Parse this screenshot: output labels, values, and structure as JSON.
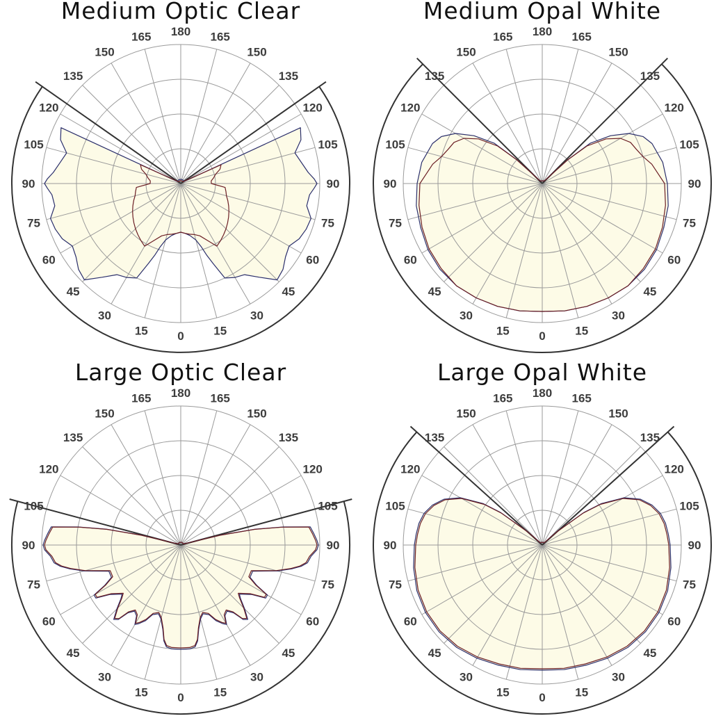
{
  "chart_data": [
    {
      "type": "polar",
      "title": "Medium Optic Clear",
      "angle_ticks": [
        "0",
        "15",
        "30",
        "45",
        "60",
        "75",
        "90",
        "105",
        "120",
        "135",
        "150",
        "165",
        "180"
      ],
      "cutoff_angle": 125,
      "fill_color": "#fdfbe7",
      "series": [
        {
          "color": "#2b2f6b",
          "angles": [
            0,
            5,
            10,
            15,
            18,
            20,
            22,
            25,
            30,
            35,
            40,
            45,
            50,
            55,
            60,
            65,
            70,
            75,
            80,
            85,
            88,
            90,
            92,
            95,
            100,
            105,
            110,
            115,
            120,
            125,
            130,
            135,
            140,
            145,
            150,
            155,
            160,
            165,
            170,
            175,
            180
          ],
          "r": [
            0.35,
            0.36,
            0.38,
            0.42,
            0.48,
            0.55,
            0.62,
            0.75,
            0.78,
            0.8,
            0.88,
            0.98,
            0.96,
            0.92,
            0.9,
            0.94,
            0.96,
            0.97,
            0.92,
            0.93,
            0.96,
            0.98,
            0.96,
            0.92,
            0.88,
            0.85,
            0.92,
            0.95,
            0.03,
            0.03,
            0.03,
            0.03,
            0.03,
            0.03,
            0.03,
            0.03,
            0.03,
            0.03,
            0.03,
            0.03,
            0.03
          ]
        },
        {
          "color": "#6b1e24",
          "angles": [
            0,
            5,
            10,
            15,
            20,
            25,
            30,
            35,
            40,
            45,
            50,
            55,
            60,
            65,
            70,
            75,
            80,
            85,
            90,
            95,
            100,
            105,
            110,
            115,
            120,
            125,
            130,
            135,
            140,
            150,
            160,
            170,
            180
          ],
          "r": [
            0.35,
            0.36,
            0.37,
            0.38,
            0.4,
            0.45,
            0.52,
            0.5,
            0.48,
            0.46,
            0.44,
            0.42,
            0.4,
            0.38,
            0.36,
            0.34,
            0.33,
            0.32,
            0.22,
            0.22,
            0.24,
            0.26,
            0.3,
            0.32,
            0.05,
            0.03,
            0.02,
            0.02,
            0.02,
            0.02,
            0.02,
            0.02,
            0.02
          ]
        }
      ]
    },
    {
      "type": "polar",
      "title": "Medium Opal White",
      "angle_ticks": [
        "0",
        "15",
        "30",
        "45",
        "60",
        "75",
        "90",
        "105",
        "120",
        "135",
        "150",
        "165",
        "180"
      ],
      "cutoff_angle": 135,
      "fill_color": "#fdfbe7",
      "series": [
        {
          "color": "#2b2f6b",
          "angles": [
            0,
            10,
            20,
            30,
            40,
            50,
            60,
            70,
            80,
            90,
            100,
            110,
            115,
            120,
            125,
            130,
            133,
            135,
            140,
            150,
            160,
            170,
            180
          ],
          "r": [
            0.92,
            0.93,
            0.94,
            0.95,
            0.96,
            0.96,
            0.95,
            0.93,
            0.92,
            0.9,
            0.88,
            0.84,
            0.8,
            0.72,
            0.6,
            0.45,
            0.25,
            0.08,
            0.03,
            0.02,
            0.02,
            0.02,
            0.02
          ]
        },
        {
          "color": "#6b1e24",
          "angles": [
            0,
            10,
            20,
            30,
            40,
            50,
            60,
            70,
            80,
            90,
            100,
            105,
            110,
            115,
            120,
            125,
            130,
            133,
            135,
            140,
            150,
            160,
            170,
            180
          ],
          "r": [
            0.92,
            0.93,
            0.94,
            0.95,
            0.96,
            0.95,
            0.94,
            0.92,
            0.9,
            0.88,
            0.8,
            0.75,
            0.72,
            0.7,
            0.65,
            0.56,
            0.42,
            0.25,
            0.08,
            0.03,
            0.02,
            0.02,
            0.02,
            0.02
          ]
        }
      ]
    },
    {
      "type": "polar",
      "title": "Large Optic Clear",
      "angle_ticks": [
        "0",
        "15",
        "30",
        "45",
        "60",
        "75",
        "90",
        "105",
        "120",
        "135",
        "150",
        "165",
        "180"
      ],
      "cutoff_angle": 105,
      "fill_color": "#fdfbe7",
      "series": [
        {
          "color": "#2b2f6b",
          "angles": [
            0,
            5,
            8,
            10,
            12,
            15,
            18,
            22,
            25,
            28,
            30,
            32,
            35,
            38,
            40,
            42,
            45,
            48,
            50,
            55,
            58,
            60,
            62,
            65,
            70,
            75,
            78,
            80,
            82,
            85,
            88,
            90,
            92,
            95,
            98,
            100,
            102,
            104,
            106,
            110,
            115,
            120,
            130,
            140,
            150,
            160,
            170,
            180
          ],
          "r": [
            0.75,
            0.75,
            0.74,
            0.7,
            0.62,
            0.55,
            0.52,
            0.54,
            0.6,
            0.64,
            0.66,
            0.6,
            0.58,
            0.62,
            0.7,
            0.72,
            0.65,
            0.58,
            0.55,
            0.62,
            0.72,
            0.72,
            0.62,
            0.55,
            0.55,
            0.72,
            0.82,
            0.88,
            0.92,
            0.94,
            0.98,
            0.99,
            0.98,
            0.96,
            0.94,
            0.75,
            0.55,
            0.3,
            0.06,
            0.03,
            0.02,
            0.02,
            0.02,
            0.02,
            0.02,
            0.02,
            0.02,
            0.02
          ]
        },
        {
          "color": "#6b1e24",
          "angles": [
            0,
            5,
            8,
            10,
            12,
            15,
            18,
            22,
            25,
            28,
            30,
            32,
            35,
            38,
            40,
            42,
            45,
            48,
            50,
            55,
            58,
            60,
            62,
            65,
            70,
            75,
            78,
            80,
            82,
            85,
            88,
            90,
            92,
            95,
            98,
            100,
            102,
            104,
            106,
            110,
            115,
            120,
            130,
            140,
            150,
            160,
            170,
            180
          ],
          "r": [
            0.74,
            0.74,
            0.73,
            0.69,
            0.61,
            0.54,
            0.51,
            0.53,
            0.59,
            0.63,
            0.65,
            0.59,
            0.57,
            0.61,
            0.69,
            0.71,
            0.64,
            0.57,
            0.54,
            0.61,
            0.71,
            0.71,
            0.61,
            0.54,
            0.54,
            0.71,
            0.81,
            0.87,
            0.91,
            0.93,
            0.97,
            0.98,
            0.97,
            0.95,
            0.93,
            0.74,
            0.54,
            0.29,
            0.06,
            0.03,
            0.02,
            0.02,
            0.02,
            0.02,
            0.02,
            0.02,
            0.02,
            0.02
          ]
        }
      ]
    },
    {
      "type": "polar",
      "title": "Large Opal White",
      "angle_ticks": [
        "0",
        "15",
        "30",
        "45",
        "60",
        "75",
        "90",
        "105",
        "120",
        "135",
        "150",
        "165",
        "180"
      ],
      "cutoff_angle": 132,
      "fill_color": "#fdfbe7",
      "series": [
        {
          "color": "#2b2f6b",
          "angles": [
            0,
            10,
            20,
            30,
            40,
            50,
            60,
            70,
            80,
            90,
            95,
            100,
            105,
            110,
            115,
            120,
            125,
            128,
            132,
            135,
            140,
            150,
            160,
            170,
            180
          ],
          "r": [
            0.9,
            0.91,
            0.92,
            0.94,
            0.96,
            0.97,
            0.97,
            0.96,
            0.94,
            0.92,
            0.91,
            0.9,
            0.88,
            0.84,
            0.78,
            0.68,
            0.52,
            0.38,
            0.15,
            0.05,
            0.02,
            0.02,
            0.02,
            0.02,
            0.02
          ]
        },
        {
          "color": "#6b1e24",
          "angles": [
            0,
            10,
            20,
            30,
            40,
            50,
            60,
            70,
            80,
            90,
            95,
            100,
            105,
            110,
            115,
            120,
            125,
            128,
            132,
            135,
            140,
            150,
            160,
            170,
            180
          ],
          "r": [
            0.89,
            0.9,
            0.91,
            0.93,
            0.95,
            0.96,
            0.96,
            0.95,
            0.93,
            0.91,
            0.9,
            0.89,
            0.87,
            0.83,
            0.77,
            0.67,
            0.51,
            0.37,
            0.14,
            0.05,
            0.02,
            0.02,
            0.02,
            0.02,
            0.02
          ]
        }
      ]
    }
  ]
}
